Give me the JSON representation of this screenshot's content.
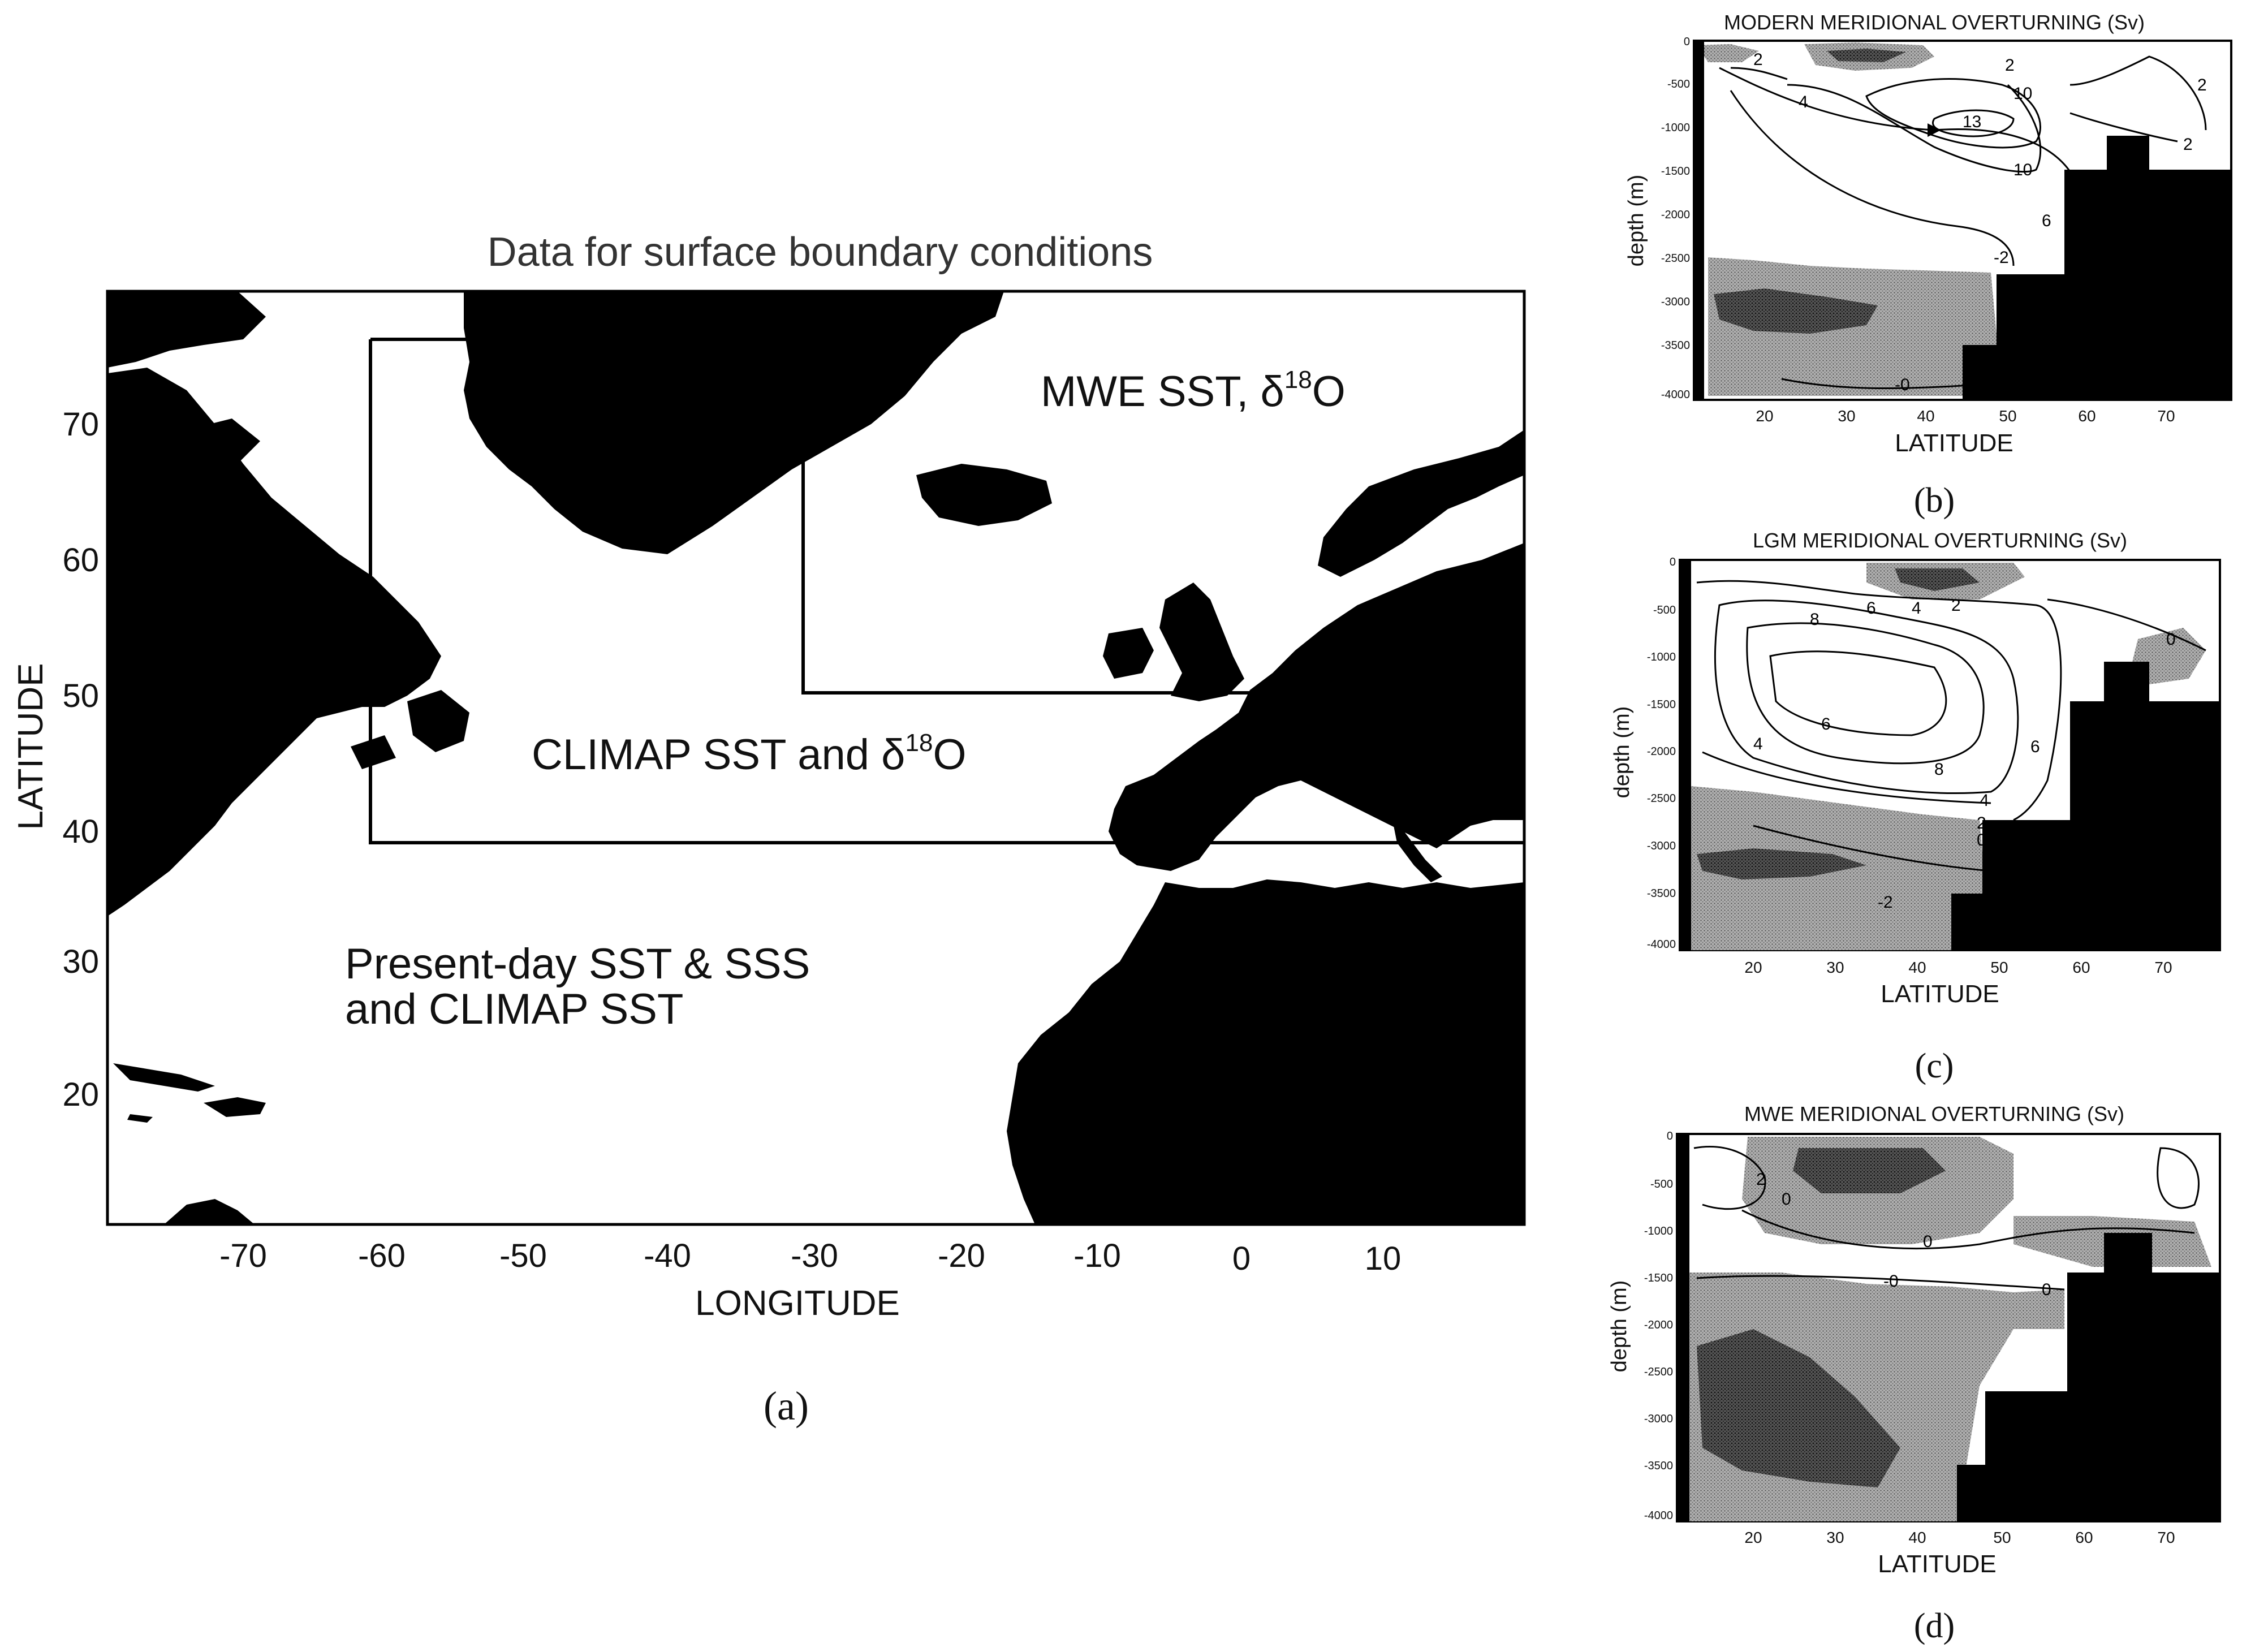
{
  "panel_a": {
    "title": "Data for surface boundary conditions",
    "xlabel": "LONGITUDE",
    "ylabel": "LATITUDE",
    "x_ticks": [
      "-70",
      "-60",
      "-50",
      "-40",
      "-30",
      "-20",
      "-10",
      "0",
      "10"
    ],
    "y_ticks": [
      "70",
      "60",
      "50",
      "40",
      "30",
      "20"
    ],
    "region_mwe": "MWE SST, δ",
    "region_mwe_sup": "18",
    "region_mwe_tail": "O",
    "region_climap": "CLIMAP SST and δ",
    "region_climap_sup": "18",
    "region_climap_tail": "O",
    "region_present_line1": "Present-day SST & SSS",
    "region_present_line2": "and  CLIMAP SST",
    "caption": "(a)"
  },
  "panel_b": {
    "title": "MODERN MERIDIONAL OVERTURNING (Sv)",
    "xlabel": "LATITUDE",
    "ylabel": "depth (m)",
    "x_ticks": [
      "20",
      "30",
      "40",
      "50",
      "60",
      "70"
    ],
    "y_ticks": [
      "0",
      "-500",
      "-1000",
      "-1500",
      "-2000",
      "-2500",
      "-3000",
      "-3500",
      "-4000"
    ],
    "contour_labels": [
      "2",
      "4",
      "2",
      "10",
      "13",
      "10",
      "6",
      "2",
      "-2",
      "0",
      "2",
      "-0"
    ],
    "caption": "(b)"
  },
  "panel_c": {
    "title": "LGM MERIDIONAL OVERTURNING (Sv)",
    "xlabel": "LATITUDE",
    "ylabel": "depth (m)",
    "x_ticks": [
      "20",
      "30",
      "40",
      "50",
      "60",
      "70"
    ],
    "y_ticks": [
      "0",
      "-500",
      "-1000",
      "-1500",
      "-2000",
      "-2500",
      "-3000",
      "-3500",
      "-4000"
    ],
    "contour_labels": [
      "8",
      "6",
      "4",
      "2",
      "6",
      "4",
      "8",
      "4",
      "2",
      "0",
      "-2",
      "6",
      "0"
    ],
    "caption": "(c)"
  },
  "panel_d": {
    "title": "MWE MERIDIONAL OVERTURNING (Sv)",
    "xlabel": "LATITUDE",
    "ylabel": "depth (m)",
    "x_ticks": [
      "20",
      "30",
      "40",
      "50",
      "60",
      "70"
    ],
    "y_ticks": [
      "0",
      "-500",
      "-1000",
      "-1500",
      "-2000",
      "-2500",
      "-3000",
      "-3500",
      "-4000"
    ],
    "contour_labels": [
      "2",
      "0",
      "0",
      "-0",
      "0"
    ],
    "caption": "(d)"
  },
  "colors": {
    "land": "#000000",
    "ocean": "#ffffff",
    "shading": "#9a9a9a",
    "dark_shading": "#333333"
  }
}
